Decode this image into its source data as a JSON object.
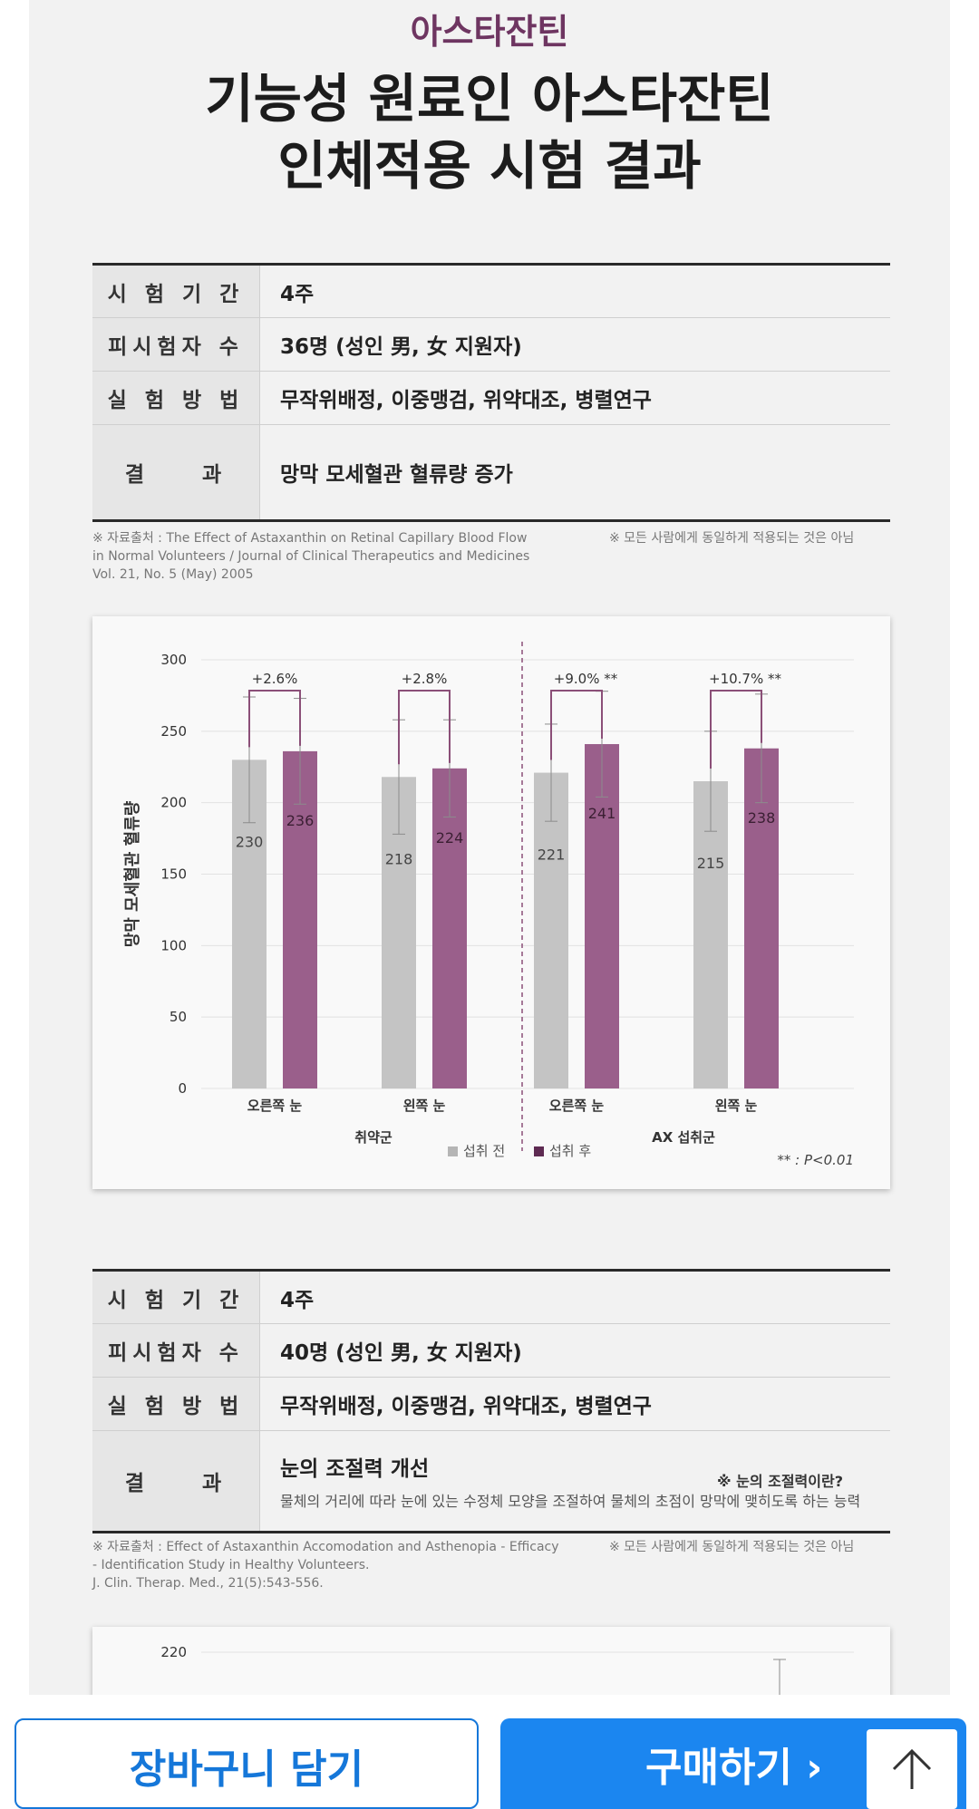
{
  "page": {
    "kicker": "아스타잔틴",
    "headline_line1": "기능성 원료인 아스타잔틴",
    "headline_line2": "인체적용 시험 결과"
  },
  "study1": {
    "rows": [
      {
        "k": "시 험 기 간",
        "v": "4주"
      },
      {
        "k": "피시험자 수",
        "v": "36명 (성인 男, 女 지원자)"
      },
      {
        "k": "실 험 방 법",
        "v": "무작위배정, 이중맹검, 위약대조, 병렬연구"
      },
      {
        "k": "결　　과",
        "v": "망막 모세혈관 혈류량 증가"
      }
    ],
    "source_line1": "※ 자료출처 : The Effect of Astaxanthin on Retinal Capillary Blood Flow",
    "source_line2": "in Normal Volunteers / Journal of Clinical Therapeutics and Medicines",
    "source_line3": "Vol. 21, No. 5 (May) 2005",
    "disclaimer": "※ 모든 사람에게 동일하게 적용되는 것은 아님"
  },
  "chart_data": [
    {
      "type": "bar",
      "ylabel": "망막 모세혈관 혈류량",
      "ylim": [
        0,
        300
      ],
      "yticks": [
        0,
        50,
        100,
        150,
        200,
        250,
        300
      ],
      "grid": true,
      "categories": [
        "오른쪽 눈",
        "왼쪽 눈",
        "오른쪽 눈",
        "왼쪽 눈"
      ],
      "groups": [
        "취약군",
        "AX 섭취군"
      ],
      "series": [
        {
          "name": "섭취 전",
          "color": "#c4c4c4",
          "values": [
            230,
            218,
            221,
            215
          ],
          "error": [
            44,
            40,
            34,
            35
          ]
        },
        {
          "name": "섭취 후",
          "color": "#9a5f8b",
          "values": [
            236,
            224,
            241,
            238
          ],
          "error": [
            37,
            34,
            37,
            38
          ]
        }
      ],
      "annotations": [
        "+2.6%",
        "+2.8%",
        "+9.0% **",
        "+10.7% **"
      ],
      "footnote": "** : P<0.01",
      "legend_position": "bottom-center"
    },
    {
      "type": "bar",
      "yticks_visible": [
        220
      ]
    }
  ],
  "study2": {
    "rows": [
      {
        "k": "시 험 기 간",
        "v": "4주"
      },
      {
        "k": "피시험자 수",
        "v": "40명 (성인 男, 女 지원자)"
      },
      {
        "k": "실 험 방 법",
        "v": "무작위배정, 이중맹검, 위약대조, 병렬연구"
      },
      {
        "k": "결　　과",
        "v": "눈의 조절력 개선"
      }
    ],
    "result_sub_title": "※ 눈의 조절력이란?",
    "result_sub_text": "물체의 거리에 따라 눈에 있는 수정체 모양을 조절하여 물체의 초점이 망막에 맺히도록 하는 능력",
    "source_line1": "※ 자료출처 : Effect of Astaxanthin Accomodation and Asthenopia - Efficacy",
    "source_line2": "- Identification Study in Healthy Volunteers.",
    "source_line3": "J. Clin. Therap. Med., 21(5):543-556.",
    "disclaimer": "※ 모든 사람에게 동일하게 적용되는 것은 아님"
  },
  "footer": {
    "cart_label": "장바구니 담기",
    "buy_label": "구매하기 ›",
    "colors": {
      "primary": "#1b86f0",
      "accent": "#6e3561"
    }
  }
}
